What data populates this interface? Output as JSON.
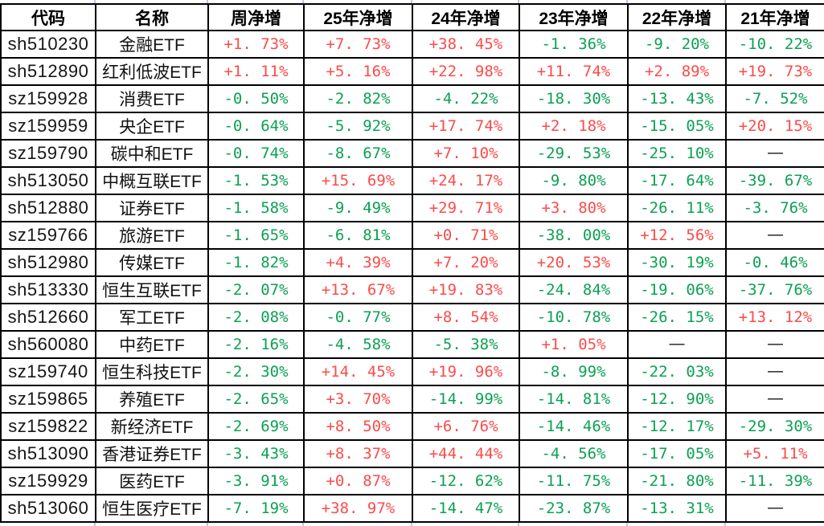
{
  "colors": {
    "positive": "#fb4b4b",
    "negative": "#0ba153",
    "neutral": "#000000",
    "border": "#000000",
    "grid_tick": "#b9c7e4",
    "header_text": "#000000"
  },
  "chart_data": {
    "type": "table",
    "title": "",
    "columns": [
      "代码",
      "名称",
      "周净增",
      "25年净增",
      "24年净增",
      "23年净增",
      "22年净增",
      "21年净增"
    ],
    "rows": [
      [
        "sh510230",
        "金融ETF",
        "+1. 73%",
        "+7. 73%",
        "+38. 45%",
        "-1. 36%",
        "-9. 20%",
        "-10. 22%"
      ],
      [
        "sh512890",
        "红利低波ETF",
        "+1. 11%",
        "+5. 16%",
        "+22. 98%",
        "+11. 74%",
        "+2. 89%",
        "+19. 73%"
      ],
      [
        "sz159928",
        "消费ETF",
        "-0. 50%",
        "-2. 82%",
        "-4. 22%",
        "-18. 30%",
        "-13. 43%",
        "-7. 52%"
      ],
      [
        "sz159959",
        "央企ETF",
        "-0. 64%",
        "-5. 92%",
        "+17. 74%",
        "+2. 18%",
        "-15. 05%",
        "+20. 15%"
      ],
      [
        "sz159790",
        "碳中和ETF",
        "-0. 74%",
        "-8. 67%",
        "+7. 10%",
        "-29. 53%",
        "-25. 10%",
        "—"
      ],
      [
        "sh513050",
        "中概互联ETF",
        "-1. 53%",
        "+15. 69%",
        "+24. 17%",
        "-9. 80%",
        "-17. 64%",
        "-39. 67%"
      ],
      [
        "sh512880",
        "证券ETF",
        "-1. 58%",
        "-9. 49%",
        "+29. 71%",
        "+3. 80%",
        "-26. 11%",
        "-3. 76%"
      ],
      [
        "sz159766",
        "旅游ETF",
        "-1. 65%",
        "-6. 81%",
        "+0. 71%",
        "-38. 00%",
        "+12. 56%",
        "—"
      ],
      [
        "sh512980",
        "传媒ETF",
        "-1. 82%",
        "+4. 39%",
        "+7. 20%",
        "+20. 53%",
        "-30. 19%",
        "-0. 46%"
      ],
      [
        "sh513330",
        "恒生互联ETF",
        "-2. 07%",
        "+13. 67%",
        "+19. 83%",
        "-24. 84%",
        "-19. 06%",
        "-37. 76%"
      ],
      [
        "sh512660",
        "军工ETF",
        "-2. 08%",
        "-0. 77%",
        "+8. 54%",
        "-10. 78%",
        "-26. 15%",
        "+13. 12%"
      ],
      [
        "sh560080",
        "中药ETF",
        "-2. 16%",
        "-4. 58%",
        "-5. 38%",
        "+1. 05%",
        "—",
        "—"
      ],
      [
        "sz159740",
        "恒生科技ETF",
        "-2. 30%",
        "+14. 45%",
        "+19. 96%",
        "-8. 99%",
        "-22. 03%",
        "—"
      ],
      [
        "sz159865",
        "养殖ETF",
        "-2. 65%",
        "+3. 70%",
        "-14. 99%",
        "-14. 81%",
        "-12. 90%",
        "—"
      ],
      [
        "sz159822",
        "新经济ETF",
        "-2. 69%",
        "+8. 50%",
        "+6. 76%",
        "-14. 46%",
        "-12. 17%",
        "-29. 30%"
      ],
      [
        "sh513090",
        "香港证券ETF",
        "-3. 43%",
        "+8. 37%",
        "+44. 44%",
        "-4. 56%",
        "-17. 05%",
        "+5. 11%"
      ],
      [
        "sz159929",
        "医药ETF",
        "-3. 91%",
        "+0. 87%",
        "-12. 62%",
        "-11. 75%",
        "-21. 80%",
        "-11. 39%"
      ],
      [
        "sh513060",
        "恒生医疗ETF",
        "-7. 19%",
        "+38. 97%",
        "-14. 47%",
        "-23. 87%",
        "-13. 31%",
        "—"
      ]
    ]
  }
}
